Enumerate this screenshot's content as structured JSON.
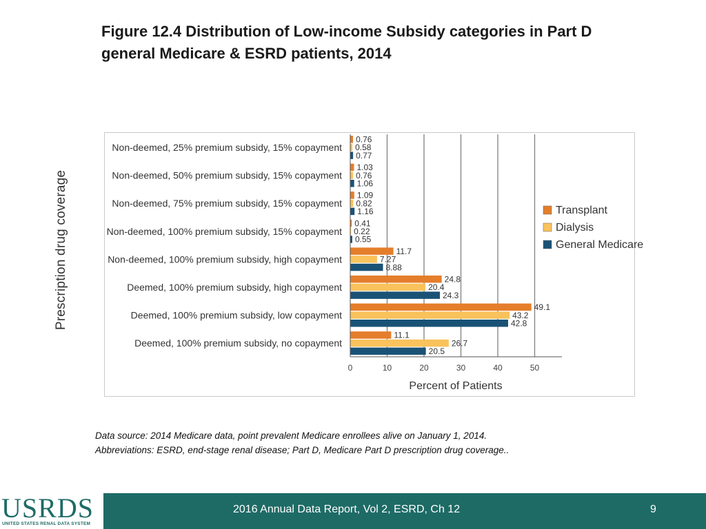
{
  "slide": {
    "title_line1": "Figure 12.4  Distribution of Low-income Subsidy categories in Part D",
    "title_line2": "general Medicare & ESRD patients, 2014",
    "note_line1": "Data source: 2014 Medicare data, point prevalent Medicare enrollees alive on January 1, 2014.",
    "note_line2": "Abbreviations: ESRD, end-stage renal disease; Part D, Medicare Part D prescription drug coverage..",
    "footer_text": "2016 Annual Data Report, Vol 2, ESRD, Ch 12",
    "page_number": "9",
    "logo_main": "USRDS",
    "logo_sub": "UNITED STATES RENAL DATA SYSTEM"
  },
  "colors": {
    "transplant": "#e57e2b",
    "dialysis": "#f9c25c",
    "general_medicare": "#1a5276",
    "gridline": "#7f7f7f",
    "footer": "#1e6b66"
  },
  "chart_data": {
    "type": "bar",
    "orientation": "horizontal",
    "title": "",
    "xlabel": "Percent of Patients",
    "ylabel": "Prescription drug coverage",
    "xlim": [
      0,
      50
    ],
    "xticks": [
      0,
      10,
      20,
      30,
      40,
      50
    ],
    "grid": "vertical",
    "legend_position": "right",
    "categories": [
      "Non-deemed, 25% premium subsidy, 15% copayment",
      "Non-deemed, 50% premium subsidy, 15% copayment",
      "Non-deemed, 75% premium subsidy, 15% copayment",
      "Non-deemed, 100% premium subsidy, 15% copayment",
      "Non-deemed, 100% premium subsidy, high copayment",
      "Deemed, 100% premium subsidy, high copayment",
      "Deemed, 100% premium subsidy, low copayment",
      "Deemed, 100% premium subsidy, no copayment"
    ],
    "series": [
      {
        "name": "Transplant",
        "values": [
          0.76,
          1.03,
          1.09,
          0.41,
          11.7,
          24.8,
          49.1,
          11.1
        ],
        "labels": [
          "0.76",
          "1.03",
          "1.09",
          "0.41",
          "11.7",
          "24.8",
          "49.1",
          "11.1"
        ]
      },
      {
        "name": "Dialysis",
        "values": [
          0.58,
          0.76,
          0.82,
          0.22,
          7.27,
          20.4,
          43.2,
          26.7
        ],
        "labels": [
          "0.58",
          "0.76",
          "0.82",
          "0.22",
          "7.27",
          "20.4",
          "43.2",
          "26.7"
        ]
      },
      {
        "name": "General Medicare",
        "values": [
          0.77,
          1.06,
          1.16,
          0.55,
          8.88,
          24.3,
          42.8,
          20.5
        ],
        "labels": [
          "0.77",
          "1.06",
          "1.16",
          "0.55",
          "8.88",
          "24.3",
          "42.8",
          "20.5"
        ]
      }
    ]
  }
}
